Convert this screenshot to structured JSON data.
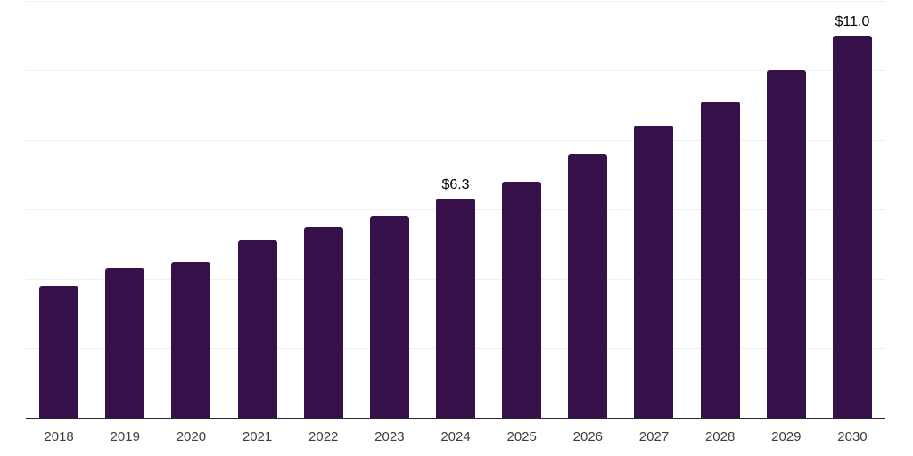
{
  "chart_data": {
    "type": "bar",
    "title": "",
    "xlabel": "",
    "ylabel": "",
    "categories": [
      "2018",
      "2019",
      "2020",
      "2021",
      "2022",
      "2023",
      "2024",
      "2025",
      "2026",
      "2027",
      "2028",
      "2029",
      "2030"
    ],
    "values": [
      3.8,
      4.3,
      4.5,
      5.1,
      5.5,
      5.8,
      6.3,
      6.8,
      7.6,
      8.4,
      9.1,
      10.0,
      11.0
    ],
    "data_labels": {
      "2024": "$6.3",
      "2030": "$11.0"
    },
    "ylim": [
      0,
      12
    ],
    "gridline_step": 2,
    "grid": true,
    "legend": false,
    "colors": {
      "bar": "#351049",
      "gridline": "#EFEFEF",
      "axis": "#262626",
      "tick_label": "#3D3D3D",
      "data_label": "#000000",
      "background": "#FFFFFF"
    }
  }
}
